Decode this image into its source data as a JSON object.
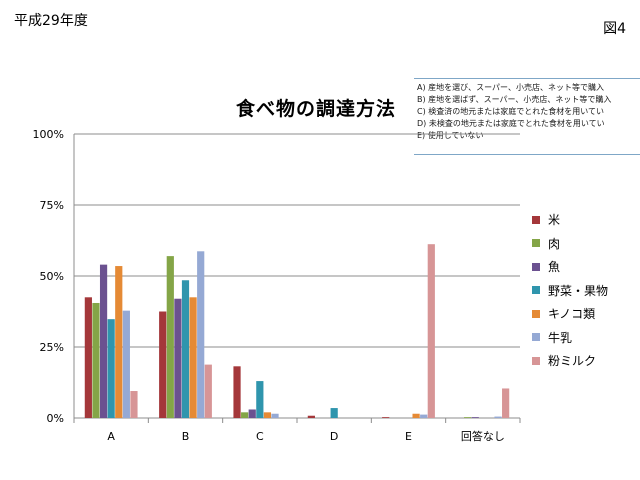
{
  "header": {
    "fiscal_year": "平成29年度",
    "figure_no": "図4"
  },
  "notes": [
    "A) 産地を選び、スーパー、小売店、ネット等で購入",
    "B) 産地を選ばず、スーパー、小売店、ネット等で購入",
    "C) 検査済の地元または家庭でとれた食材を用いてい",
    "D) 未検査の地元または家庭でとれた食材を用いてい",
    "E) 使用していない"
  ],
  "chart_data": {
    "type": "bar",
    "title": "食べ物の調達方法",
    "categories": [
      "A",
      "B",
      "C",
      "D",
      "E",
      "回答なし"
    ],
    "ylim": [
      0,
      100
    ],
    "yticks": [
      0,
      25,
      50,
      75,
      100
    ],
    "ytick_labels": [
      "0%",
      "25%",
      "50%",
      "75%",
      "100%"
    ],
    "grid": true,
    "legend_position": "right",
    "series": [
      {
        "name": "米",
        "color": "#a4373a",
        "values": [
          42.5,
          37.5,
          18.2,
          0.8,
          0.3,
          0.0
        ]
      },
      {
        "name": "肉",
        "color": "#84a547",
        "values": [
          40.5,
          57.0,
          2.0,
          0.0,
          0.0,
          0.3
        ]
      },
      {
        "name": "魚",
        "color": "#6b5190",
        "values": [
          54.0,
          42.0,
          3.0,
          0.0,
          0.0,
          0.3
        ]
      },
      {
        "name": "野菜・果物",
        "color": "#2f95ad",
        "values": [
          34.8,
          48.5,
          13.0,
          3.5,
          0.0,
          0.0
        ]
      },
      {
        "name": "キノコ類",
        "color": "#e58a35",
        "values": [
          53.5,
          42.5,
          2.0,
          0.0,
          1.5,
          0.0
        ]
      },
      {
        "name": "牛乳",
        "color": "#95a9d4",
        "values": [
          37.8,
          58.7,
          1.5,
          0.0,
          1.2,
          0.5
        ]
      },
      {
        "name": "粉ミルク",
        "color": "#d79596",
        "values": [
          9.5,
          18.8,
          0.0,
          0.0,
          61.2,
          10.4
        ]
      }
    ]
  }
}
